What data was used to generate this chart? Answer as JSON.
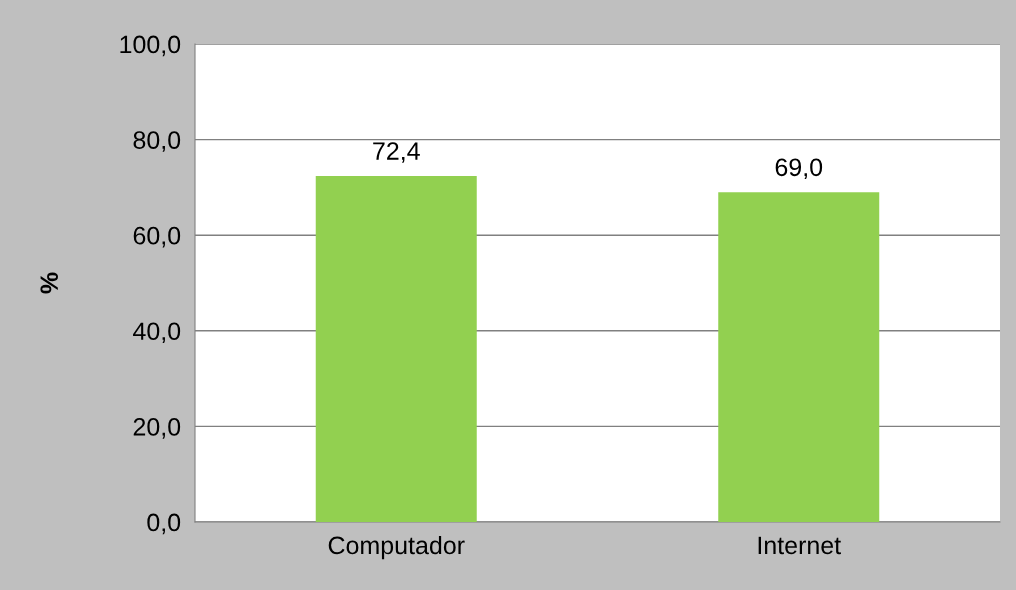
{
  "chart_data": {
    "type": "bar",
    "ylabel": "%",
    "categories": [
      "Computador",
      "Internet"
    ],
    "values": [
      72.4,
      69.0
    ],
    "color": "#92d050",
    "value_labels": [
      "72,4",
      "69,0"
    ],
    "ylim": [
      0,
      100
    ],
    "yticks": [
      {
        "value": 0,
        "label": "0,0"
      },
      {
        "value": 20,
        "label": "20,0"
      },
      {
        "value": 40,
        "label": "40,0"
      },
      {
        "value": 60,
        "label": "60,0"
      },
      {
        "value": 80,
        "label": "80,0"
      },
      {
        "value": 100,
        "label": "100,0"
      }
    ],
    "grid": "y",
    "legend": false
  }
}
